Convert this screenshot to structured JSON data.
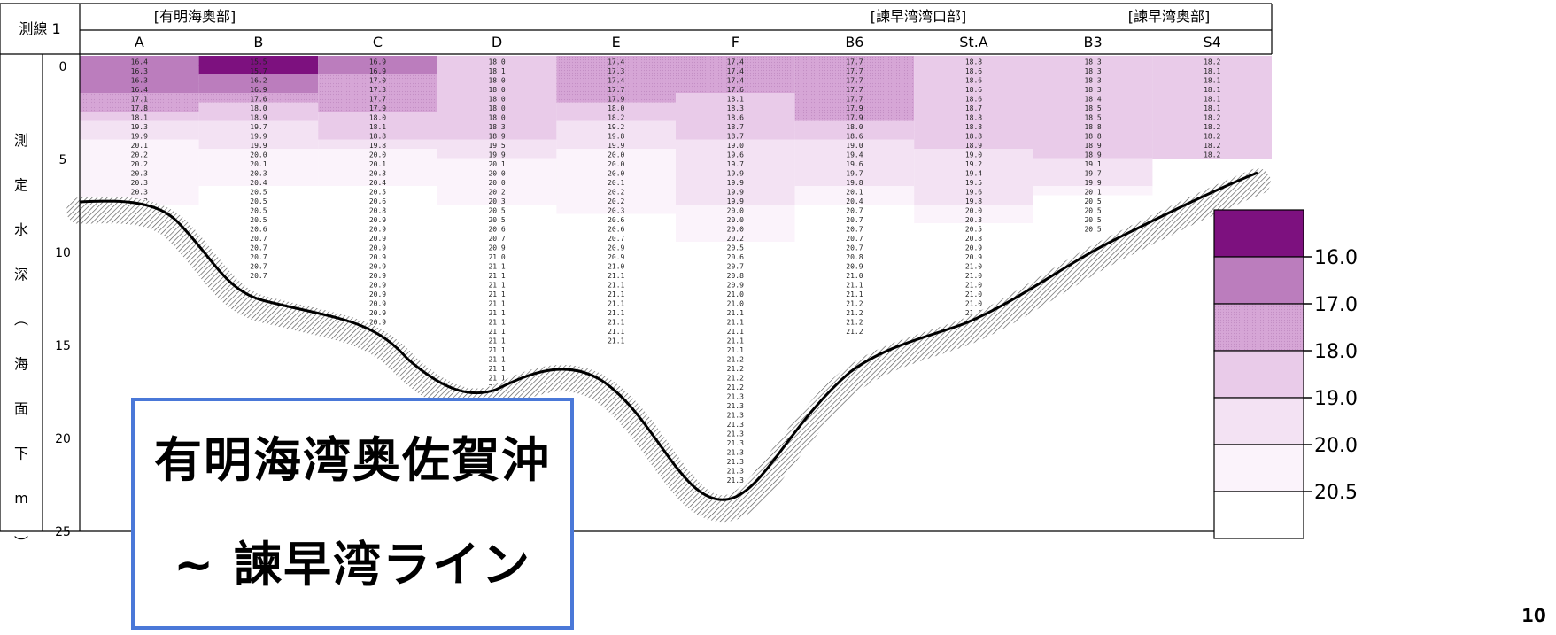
{
  "chart_data": {
    "type": "heatmap",
    "line_label": "測線 1",
    "region_labels": [
      "[有明海奥部]",
      "[諫早湾湾口部]",
      "[諫早湾奥部]"
    ],
    "ylabel": "測定水深(海面下m)",
    "ylabel_chars": [
      "測",
      "定",
      "水",
      "深",
      "︵",
      "海",
      "面",
      "下",
      "m",
      "︶"
    ],
    "ylim": [
      0,
      25
    ],
    "yticks": [
      0,
      5,
      10,
      15,
      20,
      25
    ],
    "legend_breaks": [
      "16.0",
      "17.0",
      "18.0",
      "19.0",
      "20.0",
      "20.5"
    ],
    "colors": [
      "#7d117f",
      "#bb7dbd",
      "#d6a6d6",
      "#e9cbe9",
      "#f3e2f3",
      "#fbf3fb",
      "#ffffff"
    ],
    "stations": [
      {
        "name": "A",
        "depths": [
          0,
          0.5,
          1,
          1.5,
          2,
          2.5,
          3,
          3.5,
          4,
          4.5,
          5,
          5.5,
          6,
          6.5,
          7,
          7.5
        ],
        "values": [
          "16.4",
          "16.3",
          "16.3",
          "16.4",
          "17.1",
          "17.8",
          "18.1",
          "19.3",
          "19.9",
          "20.1",
          "20.2",
          "20.2",
          "20.3",
          "20.3",
          "20.3",
          "20.3"
        ]
      },
      {
        "name": "B",
        "depths": [
          0,
          0.5,
          1,
          1.5,
          2,
          2.5,
          3,
          3.5,
          4,
          4.5,
          5,
          5.5,
          6,
          6.5,
          7,
          7.5,
          8,
          8.5,
          9,
          9.5,
          10,
          10.5,
          11,
          11.5
        ],
        "values": [
          "15.5",
          "15.7",
          "16.2",
          "16.9",
          "17.6",
          "18.0",
          "18.9",
          "19.7",
          "19.9",
          "19.9",
          "20.0",
          "20.1",
          "20.3",
          "20.4",
          "20.5",
          "20.5",
          "20.5",
          "20.5",
          "20.6",
          "20.7",
          "20.7",
          "20.7",
          "20.7",
          "20.7"
        ]
      },
      {
        "name": "C",
        "depths": [
          0,
          0.5,
          1,
          1.5,
          2,
          2.5,
          3,
          3.5,
          4,
          4.5,
          5,
          5.5,
          6,
          6.5,
          7,
          7.5,
          8,
          8.5,
          9,
          9.5,
          10,
          10.5,
          11,
          11.5,
          12,
          12.5,
          13,
          13.5,
          14
        ],
        "values": [
          "16.9",
          "16.9",
          "17.0",
          "17.3",
          "17.7",
          "17.9",
          "18.0",
          "18.1",
          "18.8",
          "19.8",
          "20.0",
          "20.1",
          "20.3",
          "20.4",
          "20.5",
          "20.6",
          "20.8",
          "20.9",
          "20.9",
          "20.9",
          "20.9",
          "20.9",
          "20.9",
          "20.9",
          "20.9",
          "20.9",
          "20.9",
          "20.9",
          "20.9"
        ]
      },
      {
        "name": "D",
        "depths": [
          0,
          0.5,
          1,
          1.5,
          2,
          2.5,
          3,
          3.5,
          4,
          4.5,
          5,
          5.5,
          6,
          6.5,
          7,
          7.5,
          8,
          8.5,
          9,
          9.5,
          10,
          10.5,
          11,
          11.5,
          12,
          12.5,
          13,
          13.5,
          14,
          14.5,
          15,
          15.5,
          16,
          16.5,
          17,
          17.5
        ],
        "values": [
          "18.0",
          "18.1",
          "18.0",
          "18.0",
          "18.0",
          "18.0",
          "18.0",
          "18.3",
          "18.9",
          "19.5",
          "19.9",
          "20.1",
          "20.0",
          "20.0",
          "20.2",
          "20.3",
          "20.5",
          "20.5",
          "20.6",
          "20.7",
          "20.9",
          "21.0",
          "21.1",
          "21.1",
          "21.1",
          "21.1",
          "21.1",
          "21.1",
          "21.1",
          "21.1",
          "21.1",
          "21.1",
          "21.1",
          "21.1",
          "21.1",
          "21.1"
        ]
      },
      {
        "name": "E",
        "depths": [
          0,
          0.5,
          1,
          1.5,
          2,
          2.5,
          3,
          3.5,
          4,
          4.5,
          5,
          5.5,
          6,
          6.5,
          7,
          7.5,
          8,
          8.5,
          9,
          9.5,
          10,
          10.5,
          11,
          11.5,
          12,
          12.5,
          13,
          13.5,
          14,
          14.5,
          15
        ],
        "values": [
          "17.4",
          "17.3",
          "17.4",
          "17.7",
          "17.9",
          "18.0",
          "18.2",
          "19.2",
          "19.8",
          "19.9",
          "20.0",
          "20.0",
          "20.0",
          "20.1",
          "20.2",
          "20.2",
          "20.3",
          "20.6",
          "20.6",
          "20.7",
          "20.9",
          "20.9",
          "21.0",
          "21.1",
          "21.1",
          "21.1",
          "21.1",
          "21.1",
          "21.1",
          "21.1",
          "21.1"
        ]
      },
      {
        "name": "F",
        "depths": [
          0,
          0.5,
          1,
          1.5,
          2,
          2.5,
          3,
          3.5,
          4,
          4.5,
          5,
          5.5,
          6,
          6.5,
          7,
          7.5,
          8,
          8.5,
          9,
          9.5,
          10,
          10.5,
          11,
          11.5,
          12,
          12.5,
          13,
          13.5,
          14,
          14.5,
          15,
          15.5,
          16,
          16.5,
          17,
          17.5,
          18,
          18.5,
          19,
          19.5,
          20,
          20.5,
          21,
          21.5,
          22,
          22.5
        ],
        "values": [
          "17.4",
          "17.4",
          "17.4",
          "17.6",
          "18.1",
          "18.3",
          "18.6",
          "18.7",
          "18.7",
          "19.0",
          "19.6",
          "19.7",
          "19.9",
          "19.9",
          "19.9",
          "19.9",
          "20.0",
          "20.0",
          "20.0",
          "20.2",
          "20.5",
          "20.6",
          "20.7",
          "20.8",
          "20.9",
          "21.0",
          "21.0",
          "21.1",
          "21.1",
          "21.1",
          "21.1",
          "21.1",
          "21.2",
          "21.2",
          "21.2",
          "21.2",
          "21.3",
          "21.3",
          "21.3",
          "21.3",
          "21.3",
          "21.3",
          "21.3",
          "21.3",
          "21.3",
          "21.3"
        ]
      },
      {
        "name": "B6",
        "depths": [
          0,
          0.5,
          1,
          1.5,
          2,
          2.5,
          3,
          3.5,
          4,
          4.5,
          5,
          5.5,
          6,
          6.5,
          7,
          7.5,
          8,
          8.5,
          9,
          9.5,
          10,
          10.5,
          11,
          11.5,
          12,
          12.5,
          13,
          13.5,
          14,
          14.5
        ],
        "values": [
          "17.7",
          "17.7",
          "17.7",
          "17.7",
          "17.7",
          "17.9",
          "17.9",
          "18.0",
          "18.6",
          "19.0",
          "19.4",
          "19.6",
          "19.7",
          "19.8",
          "20.1",
          "20.4",
          "20.7",
          "20.7",
          "20.7",
          "20.7",
          "20.7",
          "20.8",
          "20.9",
          "21.0",
          "21.1",
          "21.1",
          "21.2",
          "21.2",
          "21.2",
          "21.2"
        ]
      },
      {
        "name": "St.A",
        "depths": [
          0,
          0.5,
          1,
          1.5,
          2,
          2.5,
          3,
          3.5,
          4,
          4.5,
          5,
          5.5,
          6,
          6.5,
          7,
          7.5,
          8,
          8.5,
          9,
          9.5,
          10,
          10.5,
          11,
          11.5,
          12,
          12.5,
          13,
          13.5,
          14
        ],
        "values": [
          "18.8",
          "18.6",
          "18.6",
          "18.6",
          "18.6",
          "18.7",
          "18.8",
          "18.8",
          "18.8",
          "18.9",
          "19.0",
          "19.2",
          "19.4",
          "19.5",
          "19.6",
          "19.8",
          "20.0",
          "20.3",
          "20.5",
          "20.8",
          "20.9",
          "20.9",
          "21.0",
          "21.0",
          "21.0",
          "21.0",
          "21.0",
          "21.0",
          "21.0"
        ]
      },
      {
        "name": "B3",
        "depths": [
          0,
          0.5,
          1,
          1.5,
          2,
          2.5,
          3,
          3.5,
          4,
          4.5,
          5,
          5.5,
          6,
          6.5,
          7,
          7.5,
          8,
          8.5,
          9
        ],
        "values": [
          "18.3",
          "18.3",
          "18.3",
          "18.3",
          "18.4",
          "18.5",
          "18.5",
          "18.8",
          "18.8",
          "18.9",
          "18.9",
          "19.1",
          "19.7",
          "19.9",
          "20.1",
          "20.5",
          "20.5",
          "20.5",
          "20.5"
        ]
      },
      {
        "name": "S4",
        "depths": [
          0,
          0.5,
          1,
          1.5,
          2,
          2.5,
          3,
          3.5,
          4,
          4.5,
          5
        ],
        "values": [
          "18.2",
          "18.1",
          "18.1",
          "18.1",
          "18.1",
          "18.1",
          "18.2",
          "18.2",
          "18.2",
          "18.2",
          "18.2"
        ]
      }
    ]
  },
  "overlay": {
    "title_line1": "有明海湾奥佐賀沖",
    "title_line2": "~ 諫早湾ライン",
    "page_number": "10"
  }
}
